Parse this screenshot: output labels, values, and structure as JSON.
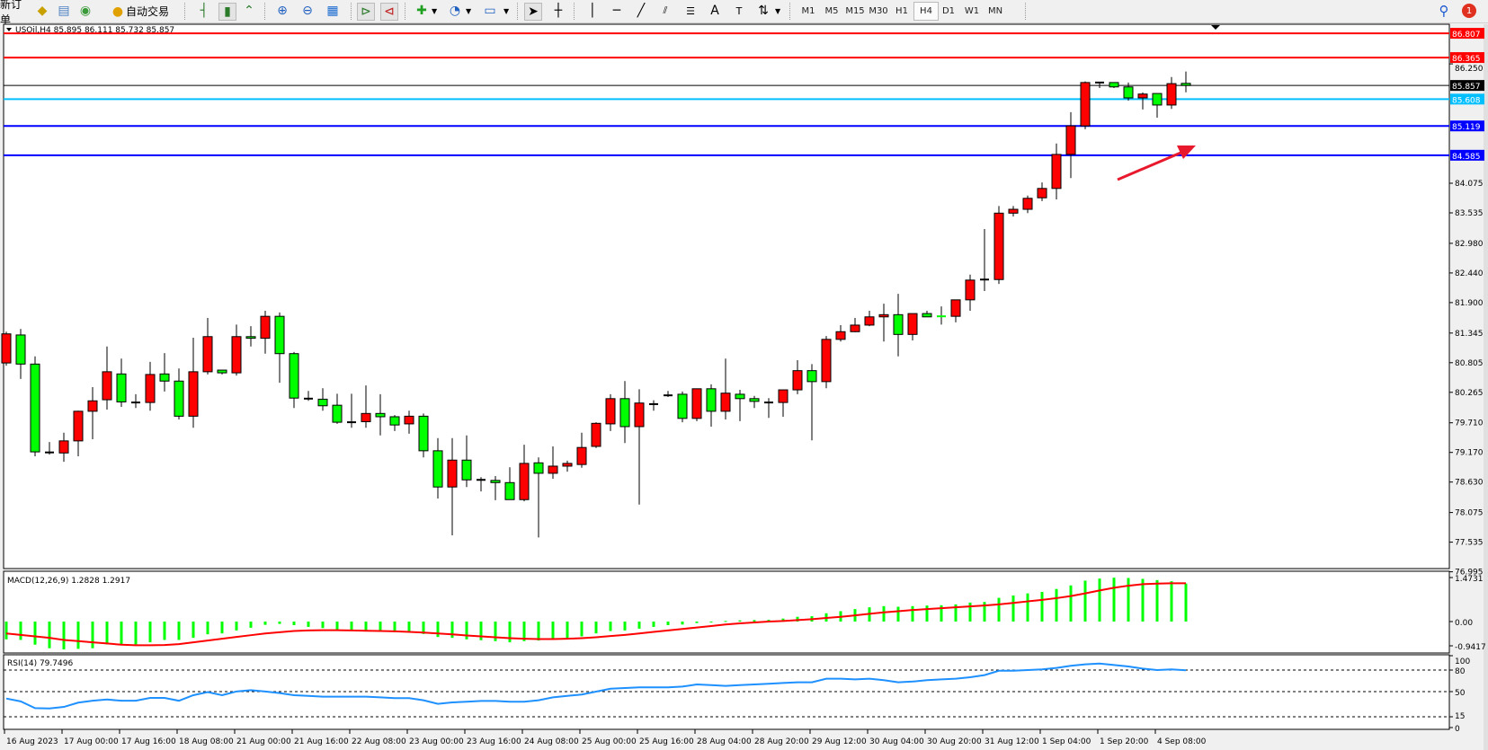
{
  "toolbar": {
    "new_order": "新订单",
    "auto_trading": "自动交易",
    "icons": [
      "gold-bars-icon",
      "market-watch-icon",
      "signals-icon",
      "auto-trading-icon",
      "bar-chart-icon",
      "candlestick-icon",
      "line-chart-icon",
      "zoom-in-icon",
      "zoom-out-icon",
      "tile-windows-icon",
      "chart-shift-icon",
      "auto-scroll-icon",
      "indicators-icon",
      "periods-icon",
      "templates-icon",
      "cursor-icon",
      "crosshair-icon",
      "vertical-line-icon",
      "horizontal-line-icon",
      "trendline-icon",
      "fibonacci-icon",
      "fibo-fan-icon",
      "text-icon",
      "text-label-icon",
      "arrows-icon"
    ],
    "text_tool": "A",
    "timeframes": [
      "M1",
      "M5",
      "M15",
      "M30",
      "H1",
      "H4",
      "D1",
      "W1",
      "MN"
    ],
    "selected_timeframe": "H4",
    "notification_count": "1"
  },
  "colors": {
    "bull": "#ff0000",
    "bear": "#00ff00",
    "level_red": "#ff0000",
    "level_cyan": "#00bfff",
    "level_blue": "#0000ff",
    "macd_hist": "#00ff00",
    "macd_signal": "#ff0000",
    "rsi": "#1e90ff",
    "arrow": "#e8192c"
  },
  "chart_data": {
    "type": "candlestick",
    "title": "USOil,H4 85.895 86.111 85.732 85.857",
    "ylim": [
      76.995,
      86.807
    ],
    "y_ticks": [
      "86.250",
      "84.075",
      "83.535",
      "82.980",
      "82.440",
      "81.900",
      "81.345",
      "80.805",
      "80.265",
      "79.710",
      "79.170",
      "78.630",
      "78.075",
      "77.535",
      "76.995"
    ],
    "x_labels": [
      "16 Aug 2023",
      "17 Aug 00:00",
      "17 Aug 16:00",
      "18 Aug 08:00",
      "21 Aug 00:00",
      "21 Aug 16:00",
      "22 Aug 08:00",
      "23 Aug 00:00",
      "23 Aug 16:00",
      "24 Aug 08:00",
      "25 Aug 00:00",
      "25 Aug 16:00",
      "28 Aug 04:00",
      "28 Aug 20:00",
      "29 Aug 12:00",
      "30 Aug 04:00",
      "30 Aug 20:00",
      "31 Aug 12:00",
      "1 Sep 04:00",
      "1 Sep 20:00",
      "4 Sep 08:00"
    ],
    "ohlc": [
      [
        80.8,
        81.37,
        80.75,
        81.33
      ],
      [
        81.31,
        81.42,
        80.51,
        80.78
      ],
      [
        80.78,
        80.92,
        79.1,
        79.18
      ],
      [
        79.17,
        79.36,
        79.13,
        79.17
      ],
      [
        79.16,
        79.53,
        79.0,
        79.38
      ],
      [
        79.38,
        79.93,
        79.1,
        79.92
      ],
      [
        79.92,
        80.36,
        79.41,
        80.11
      ],
      [
        80.13,
        81.1,
        79.95,
        80.64
      ],
      [
        80.6,
        80.88,
        80.0,
        80.09
      ],
      [
        80.08,
        80.23,
        79.98,
        80.08
      ],
      [
        80.08,
        80.82,
        79.93,
        80.59
      ],
      [
        80.6,
        80.98,
        80.28,
        80.47
      ],
      [
        80.47,
        80.7,
        79.77,
        79.83
      ],
      [
        79.83,
        81.26,
        79.62,
        80.64
      ],
      [
        80.64,
        81.62,
        80.59,
        81.28
      ],
      [
        80.67,
        80.67,
        80.59,
        80.62
      ],
      [
        80.62,
        81.5,
        80.57,
        81.28
      ],
      [
        81.28,
        81.47,
        81.1,
        81.25
      ],
      [
        81.25,
        81.75,
        80.97,
        81.65
      ],
      [
        81.65,
        81.72,
        80.44,
        80.97
      ],
      [
        80.97,
        81.0,
        79.98,
        80.16
      ],
      [
        80.15,
        80.29,
        80.11,
        80.15
      ],
      [
        80.14,
        80.34,
        79.93,
        80.02
      ],
      [
        80.03,
        80.24,
        79.69,
        79.72
      ],
      [
        79.72,
        80.24,
        79.62,
        79.72
      ],
      [
        79.73,
        80.39,
        79.62,
        79.88
      ],
      [
        79.88,
        80.23,
        79.48,
        79.82
      ],
      [
        79.82,
        79.85,
        79.56,
        79.67
      ],
      [
        79.69,
        79.93,
        79.51,
        79.83
      ],
      [
        79.83,
        79.88,
        79.08,
        79.2
      ],
      [
        79.2,
        79.43,
        78.33,
        78.54
      ],
      [
        78.54,
        79.43,
        77.66,
        79.03
      ],
      [
        79.03,
        79.48,
        78.54,
        78.67
      ],
      [
        78.67,
        78.72,
        78.46,
        78.67
      ],
      [
        78.66,
        78.74,
        78.3,
        78.62
      ],
      [
        78.62,
        78.9,
        78.31,
        78.31
      ],
      [
        78.31,
        79.31,
        78.28,
        78.97
      ],
      [
        78.98,
        79.08,
        77.62,
        78.79
      ],
      [
        78.79,
        79.28,
        78.69,
        78.92
      ],
      [
        78.92,
        79.02,
        78.82,
        78.97
      ],
      [
        78.95,
        79.53,
        78.89,
        79.26
      ],
      [
        79.28,
        79.72,
        79.25,
        79.7
      ],
      [
        79.69,
        80.23,
        79.56,
        80.15
      ],
      [
        80.15,
        80.47,
        79.34,
        79.64
      ],
      [
        79.64,
        80.32,
        78.22,
        80.07
      ],
      [
        80.05,
        80.12,
        79.93,
        80.05
      ],
      [
        80.21,
        80.29,
        80.18,
        80.21
      ],
      [
        80.23,
        80.28,
        79.72,
        79.79
      ],
      [
        79.79,
        80.33,
        79.74,
        80.33
      ],
      [
        80.33,
        80.41,
        79.64,
        79.92
      ],
      [
        79.92,
        80.88,
        79.77,
        80.25
      ],
      [
        80.23,
        80.31,
        79.74,
        80.15
      ],
      [
        80.15,
        80.2,
        79.98,
        80.1
      ],
      [
        80.08,
        80.16,
        79.8,
        80.08
      ],
      [
        80.08,
        80.31,
        79.82,
        80.31
      ],
      [
        80.31,
        80.85,
        80.23,
        80.66
      ],
      [
        80.66,
        80.78,
        79.39,
        80.46
      ],
      [
        80.46,
        81.29,
        80.34,
        81.23
      ],
      [
        81.23,
        81.49,
        81.19,
        81.37
      ],
      [
        81.37,
        81.62,
        81.36,
        81.49
      ],
      [
        81.49,
        81.75,
        81.47,
        81.64
      ],
      [
        81.64,
        81.88,
        81.19,
        81.68
      ],
      [
        81.68,
        82.06,
        80.92,
        81.32
      ],
      [
        81.32,
        81.7,
        81.21,
        81.7
      ],
      [
        81.7,
        81.75,
        81.64,
        81.64
      ],
      [
        81.65,
        81.83,
        81.5,
        81.65
      ],
      [
        81.65,
        81.95,
        81.54,
        81.95
      ],
      [
        81.95,
        82.41,
        81.75,
        82.31
      ],
      [
        82.32,
        83.24,
        82.11,
        82.32
      ],
      [
        82.32,
        83.66,
        82.24,
        83.53
      ],
      [
        83.53,
        83.66,
        83.47,
        83.6
      ],
      [
        83.6,
        83.85,
        83.53,
        83.8
      ],
      [
        83.81,
        84.09,
        83.75,
        83.98
      ],
      [
        83.98,
        84.8,
        83.78,
        84.6
      ],
      [
        84.6,
        85.37,
        84.17,
        85.12
      ],
      [
        85.12,
        85.93,
        85.06,
        85.91
      ],
      [
        85.91,
        85.91,
        85.81,
        85.91
      ],
      [
        85.91,
        85.91,
        85.81,
        85.83
      ],
      [
        85.83,
        85.91,
        85.58,
        85.63
      ],
      [
        85.63,
        85.73,
        85.42,
        85.7
      ],
      [
        85.71,
        85.71,
        85.27,
        85.5
      ],
      [
        85.5,
        86.01,
        85.43,
        85.89
      ],
      [
        85.895,
        86.111,
        85.732,
        85.857
      ]
    ],
    "levels": [
      {
        "price": "86.807",
        "color": "#ff0000",
        "text": "#ffffff"
      },
      {
        "price": "86.365",
        "color": "#ff0000",
        "text": "#ffffff"
      },
      {
        "price": "85.857",
        "color": "#000000",
        "text": "#ffffff",
        "line": "bid"
      },
      {
        "price": "85.608",
        "color": "#00bfff",
        "text": "#ffffff"
      },
      {
        "price": "85.119",
        "color": "#0000ff",
        "text": "#ffffff"
      },
      {
        "price": "84.585",
        "color": "#0000ff",
        "text": "#ffffff"
      }
    ],
    "annotation": "red-arrow-pointing-up-right",
    "macd": {
      "label": "MACD(12,26,9) 1.2828 1.2917",
      "ticks": [
        "1.4731",
        "0.00",
        "-0.9417"
      ],
      "ylim": [
        -0.9417,
        1.4731
      ],
      "histogram": [
        -0.6,
        -0.62,
        -0.78,
        -0.9,
        -0.94,
        -0.92,
        -0.9,
        -0.77,
        -0.78,
        -0.77,
        -0.7,
        -0.62,
        -0.62,
        -0.55,
        -0.43,
        -0.4,
        -0.3,
        -0.21,
        -0.11,
        -0.08,
        -0.12,
        -0.18,
        -0.22,
        -0.27,
        -0.3,
        -0.32,
        -0.34,
        -0.36,
        -0.37,
        -0.42,
        -0.52,
        -0.55,
        -0.6,
        -0.63,
        -0.66,
        -0.7,
        -0.66,
        -0.64,
        -0.6,
        -0.56,
        -0.5,
        -0.4,
        -0.32,
        -0.3,
        -0.24,
        -0.18,
        -0.12,
        -0.1,
        -0.05,
        -0.02,
        0.02,
        0.04,
        0.05,
        0.06,
        0.1,
        0.16,
        0.18,
        0.28,
        0.35,
        0.42,
        0.48,
        0.52,
        0.5,
        0.52,
        0.54,
        0.55,
        0.58,
        0.64,
        0.66,
        0.8,
        0.88,
        0.95,
        1.0,
        1.1,
        1.22,
        1.38,
        1.45,
        1.48,
        1.47,
        1.44,
        1.4,
        1.36,
        1.2828
      ],
      "signal": [
        -0.4,
        -0.45,
        -0.5,
        -0.55,
        -0.62,
        -0.66,
        -0.7,
        -0.74,
        -0.78,
        -0.8,
        -0.8,
        -0.79,
        -0.76,
        -0.7,
        -0.64,
        -0.58,
        -0.52,
        -0.46,
        -0.4,
        -0.36,
        -0.32,
        -0.3,
        -0.29,
        -0.29,
        -0.3,
        -0.31,
        -0.32,
        -0.33,
        -0.35,
        -0.37,
        -0.4,
        -0.43,
        -0.47,
        -0.5,
        -0.53,
        -0.56,
        -0.58,
        -0.59,
        -0.59,
        -0.58,
        -0.56,
        -0.53,
        -0.49,
        -0.45,
        -0.4,
        -0.35,
        -0.3,
        -0.25,
        -0.2,
        -0.15,
        -0.1,
        -0.06,
        -0.03,
        0.0,
        0.02,
        0.05,
        0.08,
        0.12,
        0.16,
        0.21,
        0.26,
        0.31,
        0.35,
        0.39,
        0.42,
        0.45,
        0.48,
        0.51,
        0.54,
        0.58,
        0.63,
        0.68,
        0.73,
        0.79,
        0.86,
        0.95,
        1.05,
        1.14,
        1.21,
        1.26,
        1.28,
        1.29,
        1.2917
      ]
    },
    "rsi": {
      "label": "RSI(14) 79.7496",
      "ticks": [
        "100",
        "80",
        "50",
        "15",
        "0"
      ],
      "levels": [
        80,
        50,
        15
      ],
      "ylim": [
        0,
        100
      ],
      "values": [
        40.4,
        36.4,
        27,
        26.6,
        28.7,
        34.7,
        37.3,
        39,
        37.3,
        37.3,
        41.3,
        41.3,
        37.3,
        45,
        49.4,
        45,
        50.2,
        52,
        50.2,
        48,
        45,
        44,
        43,
        43,
        43,
        43,
        42,
        41,
        41,
        38,
        33,
        35,
        36,
        37,
        37,
        36,
        36,
        38,
        42,
        44,
        46,
        50,
        54,
        55,
        56,
        56,
        56,
        57,
        60,
        59,
        58,
        59,
        60,
        61,
        62,
        63,
        63,
        68,
        68,
        67,
        68,
        66,
        63,
        64,
        66,
        67,
        68,
        70,
        73,
        79,
        79,
        80,
        81,
        83,
        86,
        88,
        89,
        87,
        85,
        82,
        80,
        81,
        79.7496
      ]
    }
  }
}
